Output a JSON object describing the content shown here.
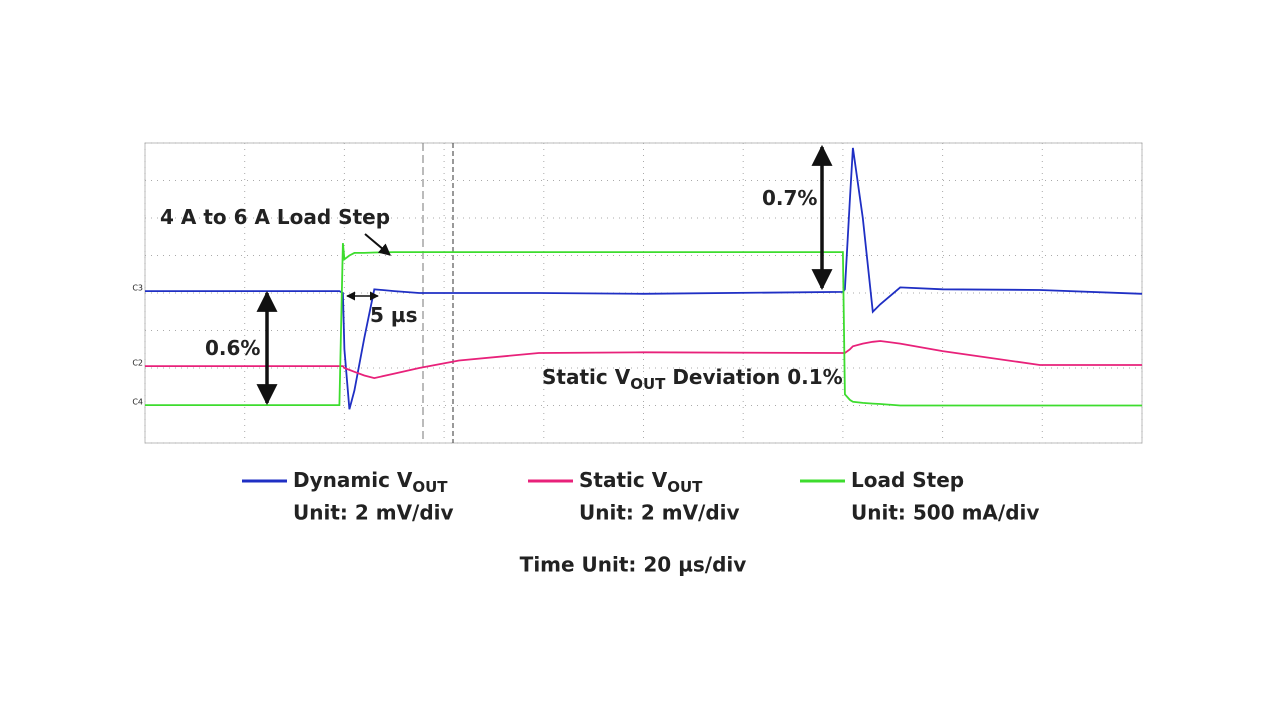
{
  "chart_data": {
    "type": "line",
    "x_label": "Time Unit: 20 µs/div",
    "x": [
      0,
      39,
      39.7,
      40,
      41,
      42,
      44,
      46,
      50,
      55,
      63,
      79,
      100,
      140,
      140.4,
      141.4,
      142,
      144,
      146,
      147.5,
      151.5,
      160,
      179.5,
      200
    ],
    "xlim": [
      0,
      200
    ],
    "ylim": [
      -4,
      4
    ],
    "xticks": [
      0,
      20,
      40,
      60,
      80,
      100,
      120,
      140,
      160,
      180,
      200
    ],
    "yticks": [
      -4,
      -3,
      -2,
      -1,
      0,
      1,
      2,
      3,
      4
    ],
    "grid": true,
    "series": [
      {
        "name": "Dynamic V",
        "name_subscript": "OUT",
        "unit": "Unit: 2 mV/div",
        "channel": "C3",
        "color": "#1f2fc4",
        "values": [
          0.05,
          0.05,
          0.0,
          -1.5,
          -3.1,
          -2.6,
          -1.2,
          0.1,
          0.05,
          0,
          0,
          0,
          -0.02,
          0.03,
          0.1,
          2.5,
          3.87,
          2.0,
          -0.5,
          -0.3,
          0.15,
          0.1,
          0.08,
          -0.02
        ]
      },
      {
        "name": "Static V",
        "name_subscript": "OUT",
        "unit": "Unit: 2 mV/div",
        "channel": "C2",
        "color": "#e8217a",
        "values": [
          -1.95,
          -1.95,
          -1.95,
          -2.0,
          -2.05,
          -2.1,
          -2.2,
          -2.27,
          -2.15,
          -2.0,
          -1.8,
          -1.6,
          -1.58,
          -1.6,
          -1.6,
          -1.5,
          -1.42,
          -1.35,
          -1.3,
          -1.28,
          -1.35,
          -1.55,
          -1.92,
          -1.92
        ]
      },
      {
        "name": "Load Step",
        "unit": "Unit: 500 mA/div",
        "channel": "C4",
        "color": "#3ddc2e",
        "values": [
          -2.99,
          -2.99,
          1.33,
          0.9,
          1.0,
          1.07,
          1.07,
          1.08,
          1.09,
          1.09,
          1.09,
          1.09,
          1.09,
          1.09,
          -2.7,
          -2.85,
          -2.9,
          -2.93,
          -2.95,
          -2.96,
          -3.0,
          -3.0,
          -3.0,
          -3.0
        ]
      }
    ],
    "annotations": [
      {
        "text": "4 A to 6 A Load Step"
      },
      {
        "text": "0.7%"
      },
      {
        "text": "0.6%"
      },
      {
        "text": "5 µs"
      },
      {
        "text": "Static V",
        "subscript": "OUT",
        "text_after": " Deviation 0.1%"
      }
    ]
  }
}
